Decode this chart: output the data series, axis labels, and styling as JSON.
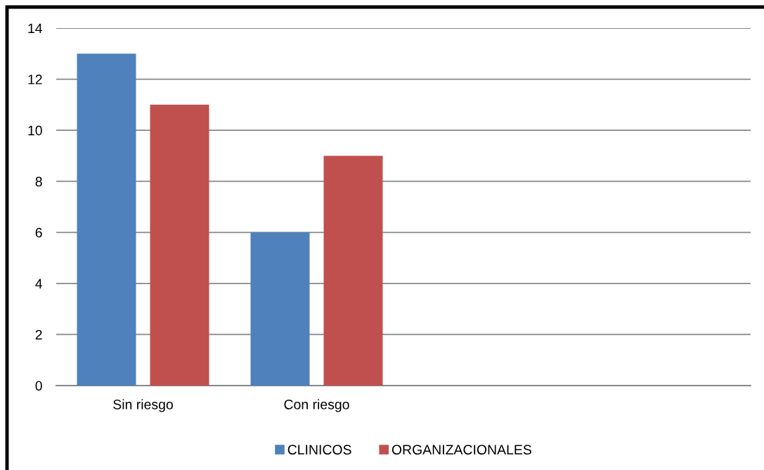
{
  "chart_data": {
    "type": "bar",
    "categories": [
      "Sin riesgo",
      "Con riesgo",
      null,
      null
    ],
    "series": [
      {
        "name": "CLINICOS",
        "color": "#4f81bd",
        "values": [
          13,
          6,
          null,
          null
        ]
      },
      {
        "name": "ORGANIZACIONALES",
        "color": "#c0504d",
        "values": [
          11,
          9,
          null,
          null
        ]
      }
    ],
    "ylim": [
      0,
      14
    ],
    "yticks": [
      0,
      2,
      4,
      6,
      8,
      10,
      12,
      14
    ],
    "grid": "y",
    "legend": "bottom"
  }
}
